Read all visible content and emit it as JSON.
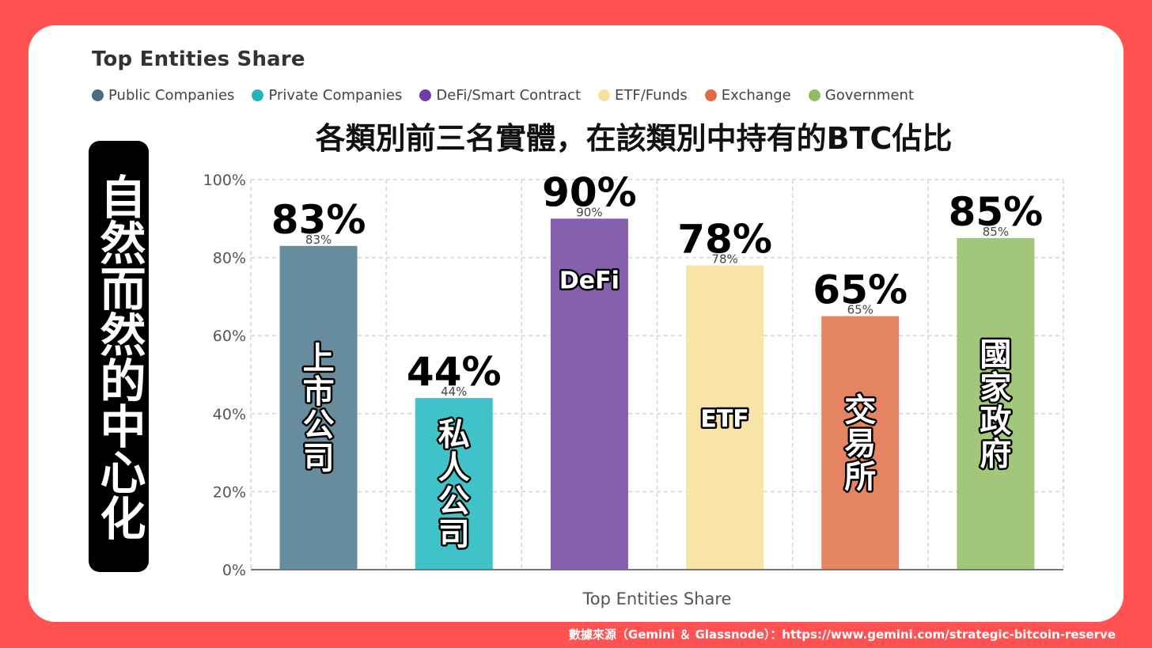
{
  "card": {
    "title": "Top Entities Share"
  },
  "legend": [
    {
      "label": "Public Companies",
      "color": "#4a6d82"
    },
    {
      "label": "Private Companies",
      "color": "#1fb5b9"
    },
    {
      "label": "DeFi/Smart Contract",
      "color": "#6d3ea8"
    },
    {
      "label": "ETF/Funds",
      "color": "#f7e3a0"
    },
    {
      "label": "Exchange",
      "color": "#df6b47"
    },
    {
      "label": "Government",
      "color": "#8fbe60"
    }
  ],
  "headline": "各類別前三名實體，在該類別中持有的BTC佔比",
  "side_banner": "自然而然的中心化",
  "footer": "數據來源（Gemini ＆ Glassnode）：https://www.gemini.com/strategic-bitcoin-reserve",
  "chart_data": {
    "type": "bar",
    "categories": [
      "上市公司",
      "私人公司",
      "DeFi",
      "ETF",
      "交易所",
      "國家政府"
    ],
    "values": [
      83,
      44,
      90,
      78,
      65,
      85
    ],
    "value_labels": [
      "83%",
      "44%",
      "90%",
      "78%",
      "65%",
      "85%"
    ],
    "colors": [
      "#678c9e",
      "#40c3c8",
      "#8460ad",
      "#f8e4a7",
      "#e48462",
      "#a2c67a"
    ],
    "xlabel": "Top Entities Share",
    "ylabel": "",
    "ylim": [
      0,
      100
    ],
    "yticks": [
      "0%",
      "20%",
      "40%",
      "60%",
      "80%",
      "100%"
    ],
    "grid": true,
    "legend": "top-left"
  }
}
